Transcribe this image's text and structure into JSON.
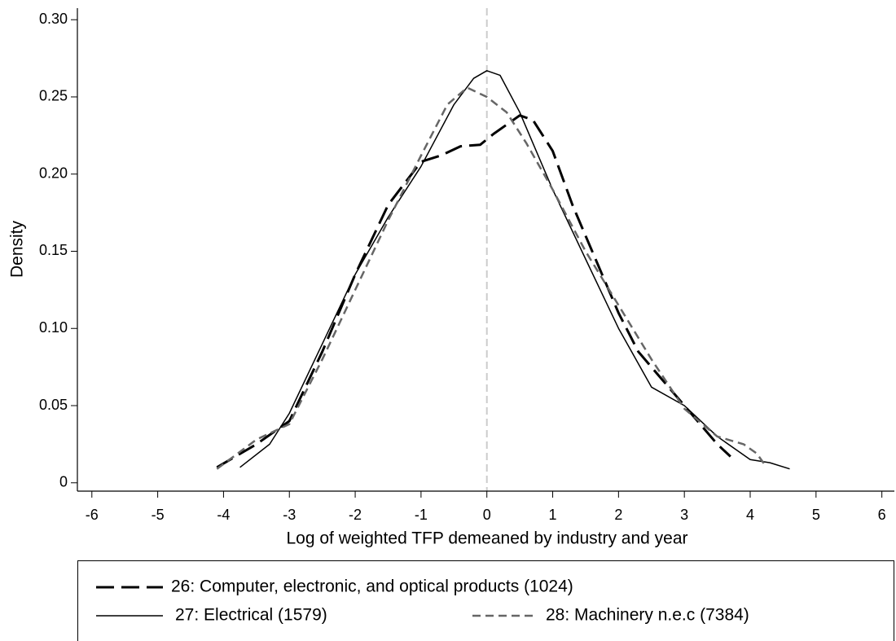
{
  "chart_data": {
    "type": "line",
    "x_label": "Log of weighted TFP demeaned by industry and year",
    "y_label": "Density",
    "xlim": [
      -6.22,
      6.19
    ],
    "ylim": [
      -0.0054,
      0.3075
    ],
    "xticks": [
      -6,
      -5,
      -4,
      -3,
      -2,
      -1,
      0,
      1,
      2,
      3,
      4,
      5,
      6
    ],
    "yticks": [
      0,
      0.05,
      {
        "value": 0.1,
        "label": "0.10"
      },
      0.15,
      {
        "value": 0.2,
        "label": "0.20"
      },
      0.25,
      {
        "value": 0.3,
        "label": "0.30"
      }
    ],
    "reference_line_x": 0,
    "series": [
      {
        "name": "26: Computer, electronic, and optical products (1024)",
        "color": "#000000",
        "dash": "22,9",
        "width": 3,
        "x": [
          -4.1,
          -3.5,
          -3,
          -2.5,
          -2,
          -1.5,
          -1,
          -0.7,
          -0.4,
          -0.1,
          0.1,
          0.3,
          0.5,
          0.7,
          1,
          1.3,
          1.5,
          1.8,
          2,
          2.3,
          2.6,
          3,
          3.3,
          3.5,
          3.7
        ],
        "values": [
          0.01,
          0.025,
          0.04,
          0.085,
          0.135,
          0.18,
          0.208,
          0.212,
          0.218,
          0.219,
          0.226,
          0.232,
          0.238,
          0.235,
          0.215,
          0.18,
          0.16,
          0.13,
          0.11,
          0.085,
          0.07,
          0.05,
          0.035,
          0.025,
          0.017
        ]
      },
      {
        "name": "27: Electrical (1579)",
        "color": "#000000",
        "dash": "none",
        "width": 1.5,
        "x": [
          -3.75,
          -3.3,
          -3,
          -2.5,
          -2,
          -1.5,
          -1,
          -0.5,
          -0.2,
          0,
          0.2,
          0.5,
          1,
          1.5,
          2,
          2.5,
          3,
          3.5,
          4,
          4.3,
          4.6
        ],
        "values": [
          0.01,
          0.025,
          0.045,
          0.09,
          0.135,
          0.172,
          0.205,
          0.245,
          0.262,
          0.267,
          0.264,
          0.24,
          0.19,
          0.145,
          0.1,
          0.062,
          0.05,
          0.03,
          0.015,
          0.013,
          0.009
        ]
      },
      {
        "name": "28: Machinery n.e.c (7384)",
        "color": "#666666",
        "dash": "10,6",
        "width": 2.5,
        "x": [
          -4.1,
          -3.5,
          -3,
          -2.5,
          -2,
          -1.5,
          -1,
          -0.6,
          -0.3,
          0,
          0.3,
          0.6,
          1,
          1.5,
          2,
          2.5,
          3,
          3.5,
          3.9,
          4.1,
          4.25
        ],
        "values": [
          0.009,
          0.028,
          0.038,
          0.08,
          0.125,
          0.17,
          0.212,
          0.245,
          0.256,
          0.25,
          0.24,
          0.22,
          0.19,
          0.15,
          0.115,
          0.08,
          0.048,
          0.03,
          0.025,
          0.019,
          0.01
        ]
      }
    ]
  }
}
